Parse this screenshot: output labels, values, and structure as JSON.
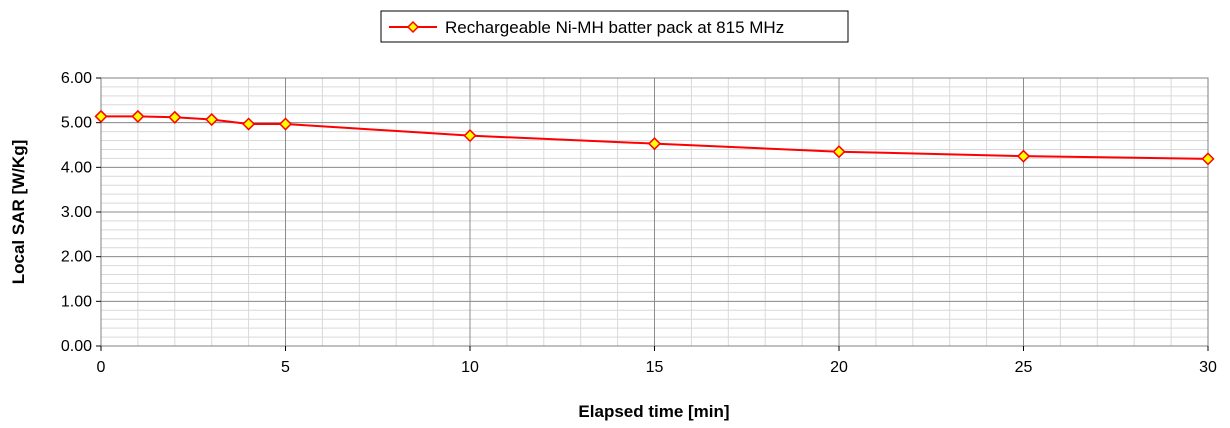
{
  "chart_data": {
    "type": "line",
    "xlabel": "Elapsed time [min]",
    "ylabel": "Local SAR [W/Kg]",
    "xlim": [
      0,
      30
    ],
    "ylim": [
      0,
      6
    ],
    "x_ticks": [
      0,
      5,
      10,
      15,
      20,
      25,
      30
    ],
    "x_tick_labels": [
      "0",
      "5",
      "10",
      "15",
      "20",
      "25",
      "30"
    ],
    "y_ticks": [
      0,
      1,
      2,
      3,
      4,
      5,
      6
    ],
    "y_tick_labels": [
      "0.00",
      "1.00",
      "2.00",
      "3.00",
      "4.00",
      "5.00",
      "6.00"
    ],
    "x_minor_step": 1,
    "y_minor_step": 0.2,
    "grid": true,
    "legend_position": "top-center",
    "series": [
      {
        "name": "Rechargeable Ni-MH batter pack at 815 MHz",
        "color": "#ff0000",
        "marker_fill": "#ffff00",
        "x": [
          0,
          1,
          2,
          3,
          4,
          5,
          10,
          15,
          20,
          25,
          30
        ],
        "y": [
          5.14,
          5.14,
          5.12,
          5.07,
          4.97,
          4.97,
          4.71,
          4.53,
          4.35,
          4.25,
          4.19
        ]
      }
    ]
  }
}
